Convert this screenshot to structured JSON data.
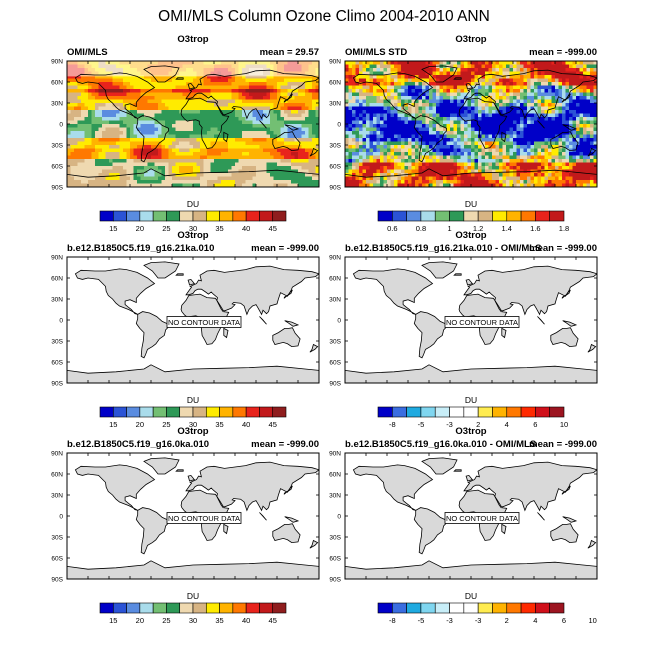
{
  "figure": {
    "title": "OMI/MLS Column Ozone Climo 2004-2010 ANN"
  },
  "colors": {
    "du_scale": [
      "#0000c8",
      "#2b53d6",
      "#5a8ce0",
      "#a9dceb",
      "#73bf73",
      "#2e9957",
      "#efd9b0",
      "#d7b483",
      "#ffeb00",
      "#ffb300",
      "#ff7800",
      "#e8231c",
      "#c2191b",
      "#8f1d1e"
    ],
    "std_scale": [
      "#0000c8",
      "#2b53d6",
      "#5a8ce0",
      "#a9dceb",
      "#73bf73",
      "#2e9957",
      "#efd9b0",
      "#d7b483",
      "#ffeb00",
      "#ffb300",
      "#ff7800",
      "#e8231c",
      "#c2191b"
    ],
    "diff_scale": [
      "#0000c8",
      "#3a6de0",
      "#1faae0",
      "#7fd6f0",
      "#c8eef8",
      "#ffffff",
      "#ffffff",
      "#ffec50",
      "#ffb300",
      "#ff7800",
      "#ff2a00",
      "#d0101a",
      "#9c1420"
    ],
    "land": "#d9d9d9"
  },
  "chart_data": [
    {
      "type": "heatmap",
      "panel_title": "O3trop",
      "left_label": "OMI/MLS",
      "right_label": "mean = 29.57",
      "yticks": [
        "90N",
        "60N",
        "30N",
        "0",
        "30S",
        "60S",
        "90S"
      ],
      "colorbar": {
        "title": "DU",
        "labels": [
          "15",
          "20",
          "25",
          "30",
          "35",
          "40",
          "45"
        ],
        "scale": "du_scale"
      },
      "no_data_text": ""
    },
    {
      "type": "heatmap",
      "panel_title": "O3trop",
      "left_label": "OMI/MLS STD",
      "right_label": "mean = -999.00",
      "yticks": [
        "90N",
        "60N",
        "30N",
        "0",
        "30S",
        "60S",
        "90S"
      ],
      "colorbar": {
        "title": "DU",
        "labels": [
          "0.6",
          "0.8",
          "1",
          "1.2",
          "1.4",
          "1.6",
          "1.8"
        ],
        "scale": "std_scale"
      },
      "no_data_text": ""
    },
    {
      "type": "heatmap",
      "panel_title": "O3trop",
      "left_label": "b.e12.B1850C5.f19_g16.21ka.010",
      "right_label": "mean = -999.00",
      "yticks": [
        "90N",
        "60N",
        "30N",
        "0",
        "30S",
        "60S",
        "90S"
      ],
      "colorbar": {
        "title": "DU",
        "labels": [
          "15",
          "20",
          "25",
          "30",
          "35",
          "40",
          "45"
        ],
        "scale": "du_scale"
      },
      "no_data_text": "NO CONTOUR DATA"
    },
    {
      "type": "heatmap",
      "panel_title": "O3trop",
      "left_label": "b.e12.B1850C5.f19_g16.21ka.010 - OMI/MLS",
      "right_label": "mean = -999.00",
      "yticks": [
        "90N",
        "60N",
        "30N",
        "0",
        "30S",
        "60S",
        "90S"
      ],
      "colorbar": {
        "title": "DU",
        "labels": [
          "-8",
          "-5",
          "-3",
          "2",
          "4",
          "6",
          "10"
        ],
        "scale": "diff_scale"
      },
      "no_data_text": "NO CONTOUR DATA"
    },
    {
      "type": "heatmap",
      "panel_title": "O3trop",
      "left_label": "b.e12.B1850C5.f19_g16.0ka.010",
      "right_label": "mean = -999.00",
      "yticks": [
        "90N",
        "60N",
        "30N",
        "0",
        "30S",
        "60S",
        "90S"
      ],
      "colorbar": {
        "title": "DU",
        "labels": [
          "15",
          "20",
          "25",
          "30",
          "35",
          "40",
          "45"
        ],
        "scale": "du_scale"
      },
      "no_data_text": "NO CONTOUR DATA"
    },
    {
      "type": "heatmap",
      "panel_title": "O3trop",
      "left_label": "b.e12.B1850C5.f19_g16.0ka.010 - OMI/MLS",
      "right_label": "mean = -999.00",
      "yticks": [
        "90N",
        "60N",
        "30N",
        "0",
        "30S",
        "60S",
        "90S"
      ],
      "colorbar": {
        "title": "DU",
        "labels": [
          "-8",
          "-5",
          "-3",
          "-3",
          "2",
          "4",
          "6",
          "10"
        ],
        "scale": "diff_scale"
      },
      "no_data_text": "NO CONTOUR DATA"
    }
  ]
}
